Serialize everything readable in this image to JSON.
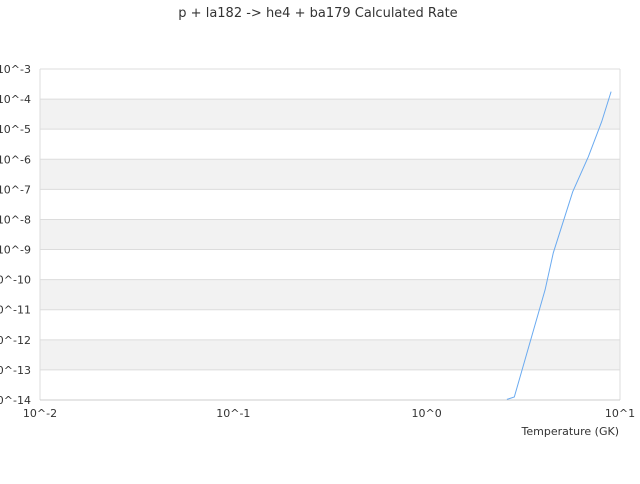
{
  "chart_data": {
    "type": "line",
    "title": "p + la182 -> he4 + ba179 Calculated Rate",
    "xlabel": "Temperature (GK)",
    "ylabel": "",
    "x_scale": "log",
    "y_scale": "log",
    "xlim": [
      0.01,
      10
    ],
    "ylim": [
      1e-14,
      0.001
    ],
    "x_ticks": [
      "10^-2",
      "10^-1",
      "10^0",
      "10^1"
    ],
    "y_ticks": [
      "10^-3",
      "10^-4",
      "10^-5",
      "10^-6",
      "10^-7",
      "10^-8",
      "10^-9",
      "10^-10",
      "10^-11",
      "10^-12",
      "10^-13",
      "10^-14"
    ],
    "grid": true,
    "banded_background": true,
    "legend": "none",
    "series": [
      {
        "color": "#6aaaf0",
        "x": [
          2.6,
          2.84,
          4.1,
          4.52,
          5.69,
          6.86,
          8.04,
          8.99
        ],
        "y": [
          1.05e-14,
          1.26e-14,
          4.6e-11,
          7.8e-10,
          8.3e-08,
          1.23e-06,
          1.78e-05,
          0.000178
        ]
      }
    ]
  }
}
